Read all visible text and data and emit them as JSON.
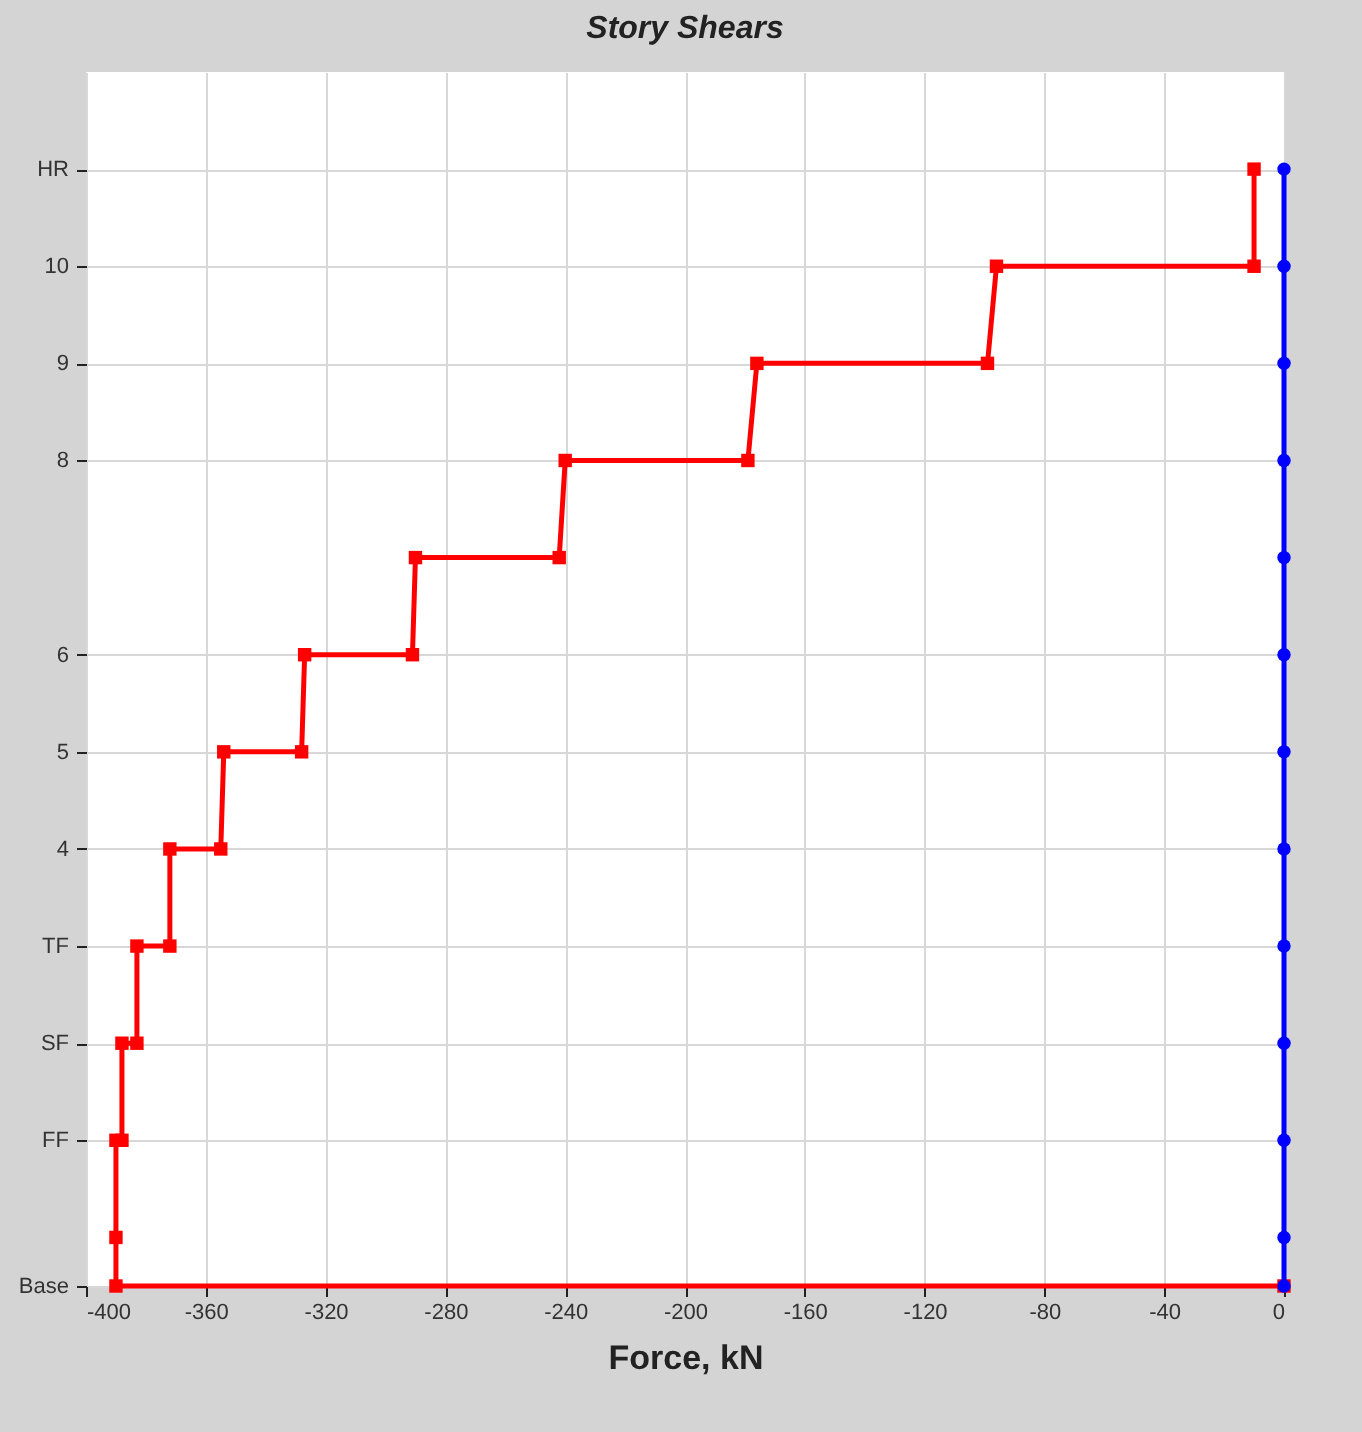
{
  "chart_data": {
    "type": "line",
    "title": "Story Shears",
    "xlabel": "Force, kN",
    "series": [
      {
        "color": "#ff0000",
        "marker": "square",
        "x": [
          0,
          -390,
          -390,
          -390,
          -388,
          -388,
          -383,
          -383,
          -372,
          -372,
          -355,
          -354,
          -328,
          -327,
          -291,
          -290,
          -242,
          -240,
          -179,
          -176,
          -99,
          -96,
          -10,
          -10
        ],
        "values": [
          0,
          0,
          0.5,
          1.5,
          1.5,
          2.5,
          2.5,
          3.5,
          3.5,
          4.5,
          4.5,
          5.5,
          5.5,
          6.5,
          6.5,
          7.5,
          7.5,
          8.5,
          8.5,
          9.5,
          9.5,
          10.5,
          10.5,
          11.5
        ]
      },
      {
        "color": "#0000ff",
        "marker": "circle",
        "x": [
          0,
          0,
          0,
          0,
          0,
          0,
          0,
          0,
          0,
          0,
          0,
          0,
          0
        ],
        "values": [
          0,
          0.5,
          1.5,
          2.5,
          3.5,
          4.5,
          5.5,
          6.5,
          7.5,
          8.5,
          9.5,
          10.5,
          11.5
        ]
      }
    ],
    "xlim": [
      -400,
      0
    ],
    "xticks": [
      -400,
      -360,
      -320,
      -280,
      -240,
      -200,
      -160,
      -120,
      -80,
      -40,
      0
    ],
    "ylim": [
      0,
      12.5
    ],
    "yticks": [
      {
        "value": 0,
        "label": "Base"
      },
      {
        "value": 1.5,
        "label": "FF"
      },
      {
        "value": 2.5,
        "label": "SF"
      },
      {
        "value": 3.5,
        "label": "TF"
      },
      {
        "value": 4.5,
        "label": "4"
      },
      {
        "value": 5.5,
        "label": "5"
      },
      {
        "value": 6.5,
        "label": "6"
      },
      {
        "value": 8.5,
        "label": "8"
      },
      {
        "value": 9.5,
        "label": "9"
      },
      {
        "value": 10.5,
        "label": "10"
      },
      {
        "value": 11.5,
        "label": "HR"
      }
    ],
    "grid": true,
    "line_style": "solid"
  }
}
